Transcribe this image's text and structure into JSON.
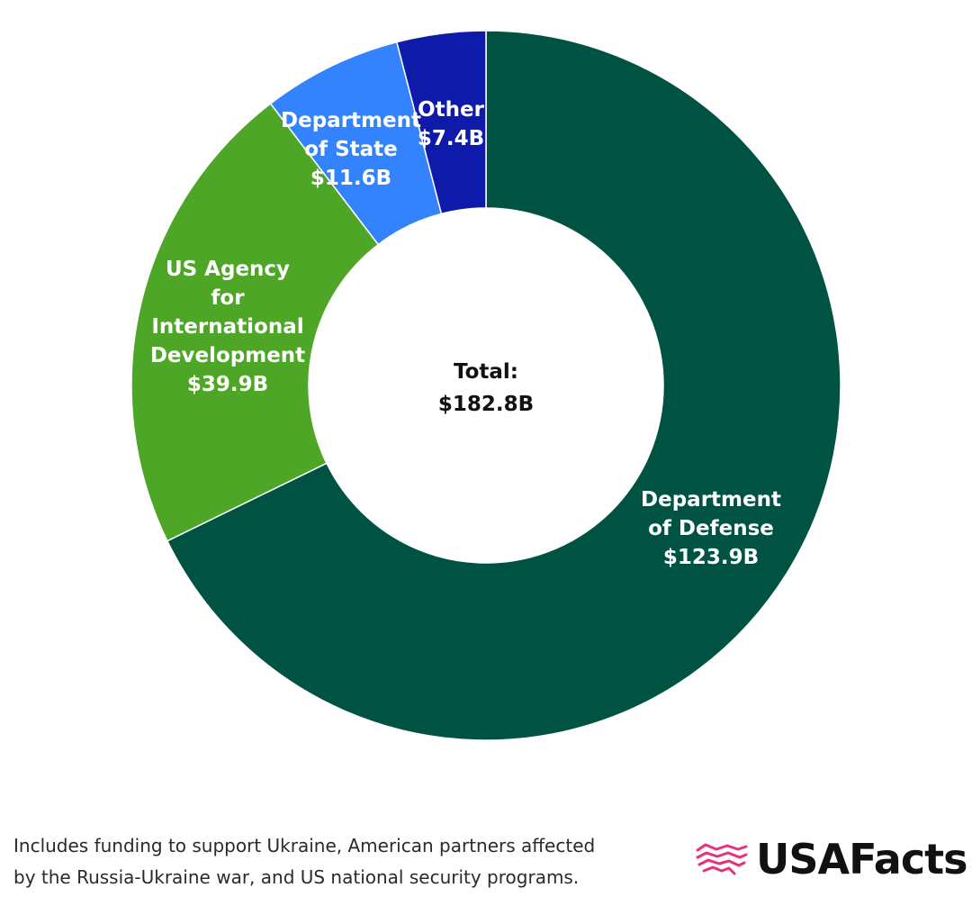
{
  "chart_data": {
    "type": "pie",
    "variant": "donut",
    "slices": [
      {
        "label_lines": [
          "Department",
          "of Defense"
        ],
        "value_label": "$123.9B",
        "value": 123.9,
        "color": "#005342"
      },
      {
        "label_lines": [
          "US Agency",
          "for",
          "International",
          "Development"
        ],
        "value_label": "$39.9B",
        "value": 39.9,
        "color": "#4ea626"
      },
      {
        "label_lines": [
          "Department",
          "of State"
        ],
        "value_label": "$11.6B",
        "value": 11.6,
        "color": "#3382fe"
      },
      {
        "label_lines": [
          "Other"
        ],
        "value_label": "$7.4B",
        "value": 7.4,
        "color": "#0e1aaa"
      }
    ],
    "center": {
      "label": "Total:",
      "value_label": "$182.8B"
    }
  },
  "footer": {
    "note_lines": [
      "Includes funding to support Ukraine, American partners affected",
      "by the Russia-Ukraine war, and US national security programs."
    ],
    "brand": "USAFacts",
    "brand_icon": "usafacts-flag-map-icon",
    "brand_icon_color": "#e6327a"
  }
}
